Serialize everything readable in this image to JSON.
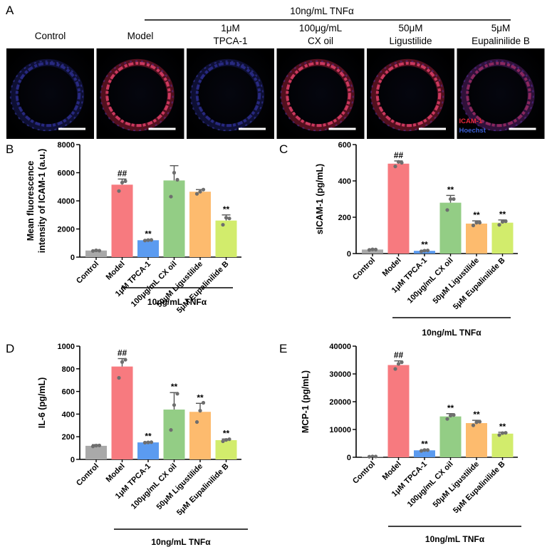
{
  "panel_a": {
    "letter": "A",
    "tnf_label": "10ng/mL TNFα",
    "images": [
      {
        "label_lines": [
          "Control"
        ],
        "stain": "blue"
      },
      {
        "label_lines": [
          "Model"
        ],
        "stain": "red"
      },
      {
        "label_lines": [
          "1μM",
          "TPCA-1"
        ],
        "stain": "blue"
      },
      {
        "label_lines": [
          "100μg/mL",
          "CX oil"
        ],
        "stain": "red"
      },
      {
        "label_lines": [
          "50μM",
          "Ligustilide"
        ],
        "stain": "red"
      },
      {
        "label_lines": [
          "5μM",
          "Eupalinilide B"
        ],
        "stain": "mixed"
      }
    ],
    "legend": [
      {
        "text": "ICAM-1",
        "color": "#e8263a"
      },
      {
        "text": "Hoechst",
        "color": "#3a5fd6"
      }
    ]
  },
  "colors": {
    "bars": [
      "#a9a9a9",
      "#f77a7f",
      "#5b9bf0",
      "#93cd85",
      "#fdbb6e",
      "#d2ec6c"
    ],
    "points": "#6e6e6e"
  },
  "chart_data": [
    {
      "letter": "B",
      "type": "bar",
      "ylabel": [
        "Mean fluorescence",
        "intensity of ICAM-1 (a.u.)"
      ],
      "categories": [
        "Control",
        "Model",
        "1μM TPCA-1",
        "100μg/mL CX oil",
        "50μM Ligustilide",
        "5μM Eupalinilide B"
      ],
      "values": [
        470,
        5150,
        1200,
        5450,
        4650,
        2600
      ],
      "errors": [
        30,
        400,
        40,
        1050,
        150,
        400
      ],
      "points": [
        [
          440,
          480,
          460
        ],
        [
          4700,
          5300,
          5400
        ],
        [
          1180,
          1210,
          1220
        ],
        [
          4300,
          6000,
          5500
        ],
        [
          4500,
          4650,
          4800
        ],
        [
          2300,
          2800,
          2750
        ]
      ],
      "labels": [
        "",
        "##",
        "**",
        "",
        "",
        "**"
      ],
      "ylim": [
        0,
        8000
      ],
      "yticks": [
        0,
        2000,
        4000,
        6000,
        8000
      ],
      "group_label": "10ng/mL TNFα"
    },
    {
      "letter": "C",
      "type": "bar",
      "ylabel": [
        "sICAM-1 (pg/mL)"
      ],
      "categories": [
        "Control",
        "Model",
        "1μM TPCA-1",
        "100μg/mL CX oil",
        "50μM Ligustilide",
        "5μM Eupalinilide B"
      ],
      "values": [
        22,
        495,
        15,
        280,
        165,
        170
      ],
      "errors": [
        3,
        15,
        3,
        40,
        15,
        15
      ],
      "points": [
        [
          20,
          23,
          22
        ],
        [
          480,
          505,
          500
        ],
        [
          12,
          16,
          17
        ],
        [
          240,
          300,
          300
        ],
        [
          155,
          170,
          170
        ],
        [
          158,
          175,
          178
        ]
      ],
      "labels": [
        "",
        "##",
        "**",
        "**",
        "**",
        "**"
      ],
      "ylim": [
        0,
        600
      ],
      "yticks": [
        0,
        200,
        400,
        600
      ],
      "group_label": "10ng/mL TNFα"
    },
    {
      "letter": "D",
      "type": "bar",
      "ylabel": [
        "IL-6 (pg/mL)"
      ],
      "categories": [
        "Control",
        "Model",
        "1μM TPCA-1",
        "100μg/mL CX oil",
        "50μM Ligustilide",
        "5μM Eupalinilide B"
      ],
      "values": [
        120,
        820,
        150,
        440,
        420,
        170
      ],
      "errors": [
        10,
        70,
        5,
        150,
        75,
        10
      ],
      "points": [
        [
          115,
          122,
          123
        ],
        [
          720,
          860,
          880
        ],
        [
          148,
          150,
          152
        ],
        [
          260,
          480,
          580
        ],
        [
          330,
          430,
          500
        ],
        [
          160,
          172,
          178
        ]
      ],
      "labels": [
        "",
        "##",
        "**",
        "**",
        "**",
        "**"
      ],
      "ylim": [
        0,
        1000
      ],
      "yticks": [
        0,
        200,
        400,
        600,
        800,
        1000
      ],
      "group_label": "10ng/mL TNFα"
    },
    {
      "letter": "E",
      "type": "bar",
      "ylabel": [
        "MCP-1 (pg/mL)"
      ],
      "categories": [
        "Control",
        "Model",
        "1μM TPCA-1",
        "100μg/mL CX oil",
        "50μM Ligustilide",
        "5μM Eupalinilide B"
      ],
      "values": [
        250,
        33200,
        2500,
        14700,
        12300,
        8500
      ],
      "errors": [
        50,
        1500,
        200,
        1000,
        1000,
        500
      ],
      "points": [
        [
          200,
          280,
          270
        ],
        [
          31800,
          33600,
          34200
        ],
        [
          2300,
          2600,
          2600
        ],
        [
          13800,
          15000,
          15200
        ],
        [
          11500,
          12600,
          12800
        ],
        [
          8000,
          8700,
          8800
        ]
      ],
      "labels": [
        "",
        "##",
        "**",
        "**",
        "**",
        "**"
      ],
      "ylim": [
        0,
        40000
      ],
      "yticks": [
        0,
        10000,
        20000,
        30000,
        40000
      ],
      "group_label": "10ng/mL TNFα"
    }
  ]
}
